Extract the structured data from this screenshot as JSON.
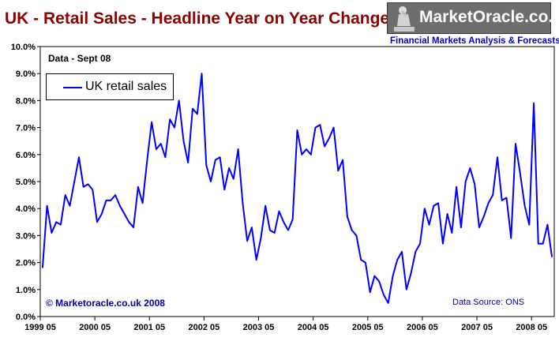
{
  "header": {
    "title": "UK - Retail Sales - Headline Year on Year Change"
  },
  "logo": {
    "name": "MarketOracle.co.uk",
    "tagline": "Financial Markets Analysis & Forecasts"
  },
  "annotations": {
    "data_note": "Data - Sept 08",
    "copyright": "© Marketoracle.co.uk 2008",
    "source": "Data Source: ONS"
  },
  "colors": {
    "series": "#0000ff",
    "title": "#8b0000",
    "annotation": "#0000a0"
  },
  "chart_data": {
    "type": "line",
    "title": "UK - Retail Sales - Headline Year on Year Change",
    "xlabel": "",
    "ylabel": "",
    "x_ticks": [
      "1999 05",
      "2000 05",
      "2001 05",
      "2002 05",
      "2003 05",
      "2004 05",
      "2005 05",
      "2006 05",
      "2007 05",
      "2008 05"
    ],
    "y_ticks": [
      "0.0%",
      "1.0%",
      "2.0%",
      "3.0%",
      "4.0%",
      "5.0%",
      "6.0%",
      "7.0%",
      "8.0%",
      "9.0%",
      "10.0%"
    ],
    "ylim": [
      0,
      10
    ],
    "grid": false,
    "legend_position": "top-left",
    "series": [
      {
        "name": "UK retail sales",
        "x": [
          "1999-05",
          "1999-06",
          "1999-07",
          "1999-08",
          "1999-09",
          "1999-10",
          "1999-11",
          "1999-12",
          "2000-01",
          "2000-02",
          "2000-03",
          "2000-04",
          "2000-05",
          "2000-06",
          "2000-07",
          "2000-08",
          "2000-09",
          "2000-10",
          "2000-11",
          "2000-12",
          "2001-01",
          "2001-02",
          "2001-03",
          "2001-04",
          "2001-05",
          "2001-06",
          "2001-07",
          "2001-08",
          "2001-09",
          "2001-10",
          "2001-11",
          "2001-12",
          "2002-01",
          "2002-02",
          "2002-03",
          "2002-04",
          "2002-05",
          "2002-06",
          "2002-07",
          "2002-08",
          "2002-09",
          "2002-10",
          "2002-11",
          "2002-12",
          "2003-01",
          "2003-02",
          "2003-03",
          "2003-04",
          "2003-05",
          "2003-06",
          "2003-07",
          "2003-08",
          "2003-09",
          "2003-10",
          "2003-11",
          "2003-12",
          "2004-01",
          "2004-02",
          "2004-03",
          "2004-04",
          "2004-05",
          "2004-06",
          "2004-07",
          "2004-08",
          "2004-09",
          "2004-10",
          "2004-11",
          "2004-12",
          "2005-01",
          "2005-02",
          "2005-03",
          "2005-04",
          "2005-05",
          "2005-06",
          "2005-07",
          "2005-08",
          "2005-09",
          "2005-10",
          "2005-11",
          "2005-12",
          "2006-01",
          "2006-02",
          "2006-03",
          "2006-04",
          "2006-05",
          "2006-06",
          "2006-07",
          "2006-08",
          "2006-09",
          "2006-10",
          "2006-11",
          "2006-12",
          "2007-01",
          "2007-02",
          "2007-03",
          "2007-04",
          "2007-05",
          "2007-06",
          "2007-07",
          "2007-08",
          "2007-09",
          "2007-10",
          "2007-11",
          "2007-12",
          "2008-01",
          "2008-02",
          "2008-03",
          "2008-04",
          "2008-05",
          "2008-06",
          "2008-07",
          "2008-08",
          "2008-09"
        ],
        "values": [
          1.8,
          4.1,
          3.1,
          3.5,
          3.4,
          4.5,
          4.1,
          5.0,
          5.9,
          4.8,
          4.9,
          4.7,
          3.5,
          3.8,
          4.3,
          4.3,
          4.5,
          4.1,
          3.8,
          3.5,
          3.3,
          4.8,
          4.2,
          5.8,
          7.2,
          6.2,
          6.4,
          5.9,
          7.3,
          7.0,
          8.0,
          6.5,
          5.7,
          7.7,
          7.5,
          9.0,
          5.6,
          5.0,
          5.8,
          5.9,
          4.7,
          5.5,
          5.1,
          6.2,
          4.2,
          2.8,
          3.3,
          2.1,
          2.9,
          4.1,
          3.2,
          3.1,
          3.9,
          3.5,
          3.2,
          3.6,
          6.9,
          6.0,
          6.2,
          6.0,
          7.0,
          7.1,
          6.3,
          6.6,
          7.0,
          5.4,
          5.8,
          3.7,
          3.2,
          3.0,
          2.1,
          2.0,
          0.9,
          1.5,
          1.3,
          0.8,
          0.5,
          1.5,
          2.1,
          2.4,
          1.0,
          1.6,
          2.4,
          2.7,
          4.0,
          3.4,
          4.1,
          4.2,
          2.7,
          3.8,
          3.1,
          4.8,
          3.3,
          5.0,
          5.5,
          4.9,
          3.3,
          3.7,
          4.2,
          4.5,
          5.9,
          4.3,
          4.4,
          2.9,
          6.4,
          5.3,
          4.1,
          3.4,
          7.9,
          2.7,
          2.7,
          3.4,
          2.2
        ]
      }
    ]
  }
}
